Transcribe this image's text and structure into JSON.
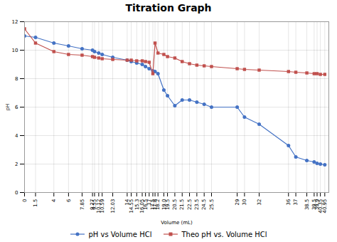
{
  "chart_data": {
    "type": "line",
    "title": "Titration Graph",
    "xlabel": "Volume (mL)",
    "ylabel": "pH",
    "x": [
      0,
      1.5,
      4,
      6,
      7.85,
      9.27,
      9.55,
      10.12,
      10.59,
      12.03,
      14,
      14.55,
      15.3,
      16.05,
      16.5,
      17,
      17.5,
      17.8,
      18.2,
      19.0,
      19.5,
      20.5,
      21.5,
      22.5,
      23.5,
      24.5,
      25.5,
      29,
      30,
      32,
      36,
      37,
      38.5,
      39.5,
      39.9,
      40.35,
      40.95
    ],
    "series": [
      {
        "name": "pH vs Volume HCl",
        "color": "#4472C4",
        "marker": "circle",
        "values": [
          11.0,
          10.9,
          10.5,
          10.3,
          10.1,
          10.0,
          9.9,
          9.8,
          9.7,
          9.5,
          9.3,
          9.2,
          9.1,
          9.0,
          8.85,
          8.7,
          8.55,
          8.5,
          8.35,
          7.2,
          6.8,
          6.1,
          6.5,
          6.5,
          6.35,
          6.2,
          6.0,
          6.0,
          5.3,
          4.8,
          3.3,
          2.5,
          2.25,
          2.15,
          2.05,
          2.0,
          1.95
        ]
      },
      {
        "name": "Theo pH vs. Volume HCl",
        "color": "#C0504D",
        "marker": "square",
        "values": [
          11.5,
          10.5,
          9.9,
          9.7,
          9.65,
          9.55,
          9.5,
          9.45,
          9.4,
          9.35,
          9.3,
          9.3,
          9.25,
          9.25,
          9.2,
          9.15,
          8.35,
          10.5,
          9.8,
          9.7,
          9.55,
          9.45,
          9.2,
          9.05,
          8.95,
          8.9,
          8.85,
          8.7,
          8.65,
          8.6,
          8.5,
          8.45,
          8.4,
          8.35,
          8.35,
          8.3,
          8.3
        ]
      }
    ],
    "xlim": [
      0,
      41.5
    ],
    "ylim": [
      0,
      12
    ],
    "xticks": [
      0,
      1.5,
      4,
      6,
      7.85,
      9.27,
      9.55,
      10.12,
      10.59,
      12.03,
      14,
      14.55,
      15.3,
      16.05,
      16.5,
      17,
      17.5,
      17.8,
      18.2,
      {
        "value": 19.0,
        "label": "19.0"
      },
      19.5,
      20.5,
      21.5,
      22.5,
      23.5,
      24.5,
      25.5,
      29,
      30,
      32,
      36,
      37,
      38.5,
      39.5,
      39.9,
      40.35,
      40.95
    ],
    "yticks": [
      0,
      2,
      4,
      6,
      8,
      10,
      12
    ],
    "grid": true,
    "legend": "bottom"
  }
}
